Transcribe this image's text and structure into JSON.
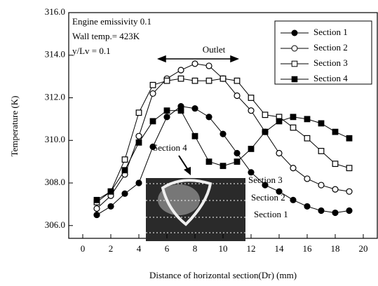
{
  "chart_data": {
    "type": "line",
    "x_label": "Distance of horizontal section(Dr) (mm)",
    "y_label": "Temperature (K)",
    "x": [
      1,
      2,
      3,
      4,
      5,
      6,
      7,
      8,
      9,
      10,
      11,
      12,
      13,
      14,
      15,
      16,
      17,
      18,
      19
    ],
    "series": [
      {
        "name": "Section 1",
        "color": "#000000",
        "marker": "circle-filled",
        "values": [
          306.5,
          306.9,
          307.5,
          308.0,
          309.7,
          311.1,
          311.6,
          311.5,
          311.1,
          310.3,
          309.4,
          308.5,
          307.9,
          307.6,
          307.2,
          306.9,
          306.7,
          306.6,
          306.7
        ]
      },
      {
        "name": "Section 2",
        "color": "#000000",
        "marker": "circle-open",
        "values": [
          306.8,
          307.4,
          308.4,
          310.2,
          312.2,
          312.9,
          313.3,
          313.6,
          313.5,
          312.9,
          312.1,
          311.4,
          310.4,
          309.4,
          308.7,
          308.2,
          307.9,
          307.7,
          307.6
        ]
      },
      {
        "name": "Section 3",
        "color": "#000000",
        "marker": "square-open",
        "values": [
          307.1,
          307.6,
          309.1,
          311.3,
          312.6,
          312.8,
          312.9,
          312.8,
          312.8,
          312.9,
          312.8,
          312.0,
          311.2,
          311.1,
          310.6,
          310.1,
          309.5,
          308.9,
          308.7
        ]
      },
      {
        "name": "Section 4",
        "color": "#000000",
        "marker": "square-filled",
        "values": [
          307.2,
          307.6,
          308.6,
          309.9,
          310.9,
          311.4,
          311.4,
          310.2,
          309.0,
          308.8,
          309.0,
          309.6,
          310.4,
          310.9,
          311.1,
          311.0,
          310.8,
          310.4,
          310.1
        ]
      }
    ],
    "xlim": [
      -1,
      21
    ],
    "xticks": [
      0,
      2,
      4,
      6,
      8,
      10,
      12,
      14,
      16,
      18,
      20
    ],
    "ylim": [
      305.4,
      316
    ],
    "yticks": [
      {
        "value": 306,
        "label": "306.0"
      },
      {
        "value": 308,
        "label": "308.0"
      },
      {
        "value": 310,
        "label": "310.0"
      },
      {
        "value": 312,
        "label": "312.0"
      },
      {
        "value": 314,
        "label": "314.0"
      },
      {
        "value": 316,
        "label": "316.0"
      }
    ],
    "legend": "upper right",
    "annotations": [
      "Engine emissivity 0.1",
      "Wall temp.= 423K",
      "y/Lv = 0.1",
      "Outlet"
    ],
    "inset_labels": [
      "Section 4",
      "Section 3",
      "Section 2",
      "Section 1"
    ]
  }
}
